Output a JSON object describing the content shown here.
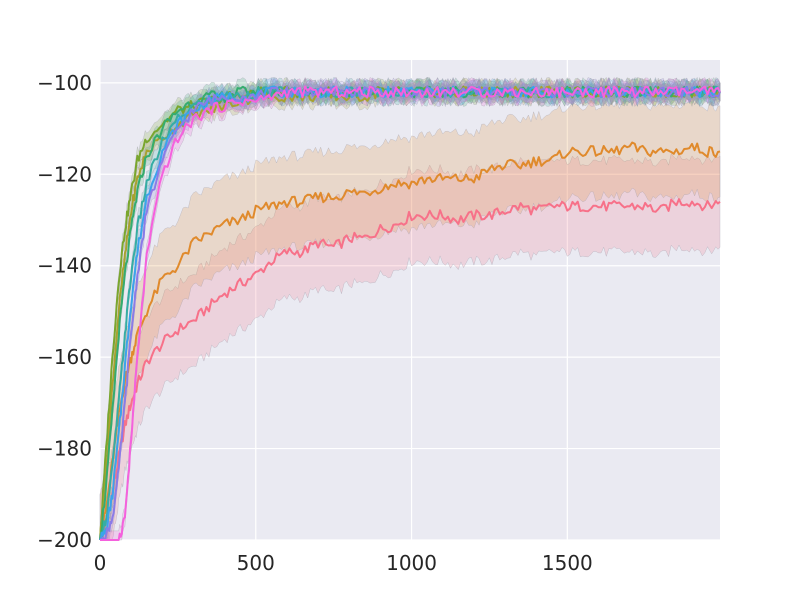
{
  "chart_data": {
    "type": "line",
    "title": "",
    "xlabel": "",
    "ylabel": "",
    "xlim": [
      0,
      1990
    ],
    "ylim": [
      -200,
      -95
    ],
    "x_ticks": [
      0,
      500,
      1000,
      1500
    ],
    "y_ticks": [
      -200,
      -180,
      -160,
      -140,
      -120,
      -100
    ],
    "x_tick_labels": [
      "0",
      "500",
      "1000",
      "1500"
    ],
    "y_tick_labels": [
      "−200",
      "−180",
      "−160",
      "−140",
      "−120",
      "−100"
    ],
    "grid": true,
    "legend": "none",
    "background": "#eaeaf2",
    "series": [
      {
        "color": "#f77189",
        "x": [
          0,
          20,
          40,
          60,
          80,
          100,
          120,
          150,
          200,
          250,
          300,
          350,
          400,
          450,
          500,
          550,
          600,
          650,
          700,
          750,
          800,
          850,
          900,
          950,
          1000,
          1050,
          1100,
          1150,
          1200,
          1250,
          1300,
          1350,
          1400,
          1450,
          1500,
          1550,
          1600,
          1650,
          1700,
          1750,
          1800,
          1850,
          1900,
          1950,
          1990
        ],
        "y": [
          -200,
          -196,
          -190,
          -182,
          -175,
          -170,
          -166,
          -161,
          -157,
          -154,
          -152,
          -149,
          -146,
          -144,
          -142,
          -139,
          -137,
          -137,
          -135,
          -136,
          -134,
          -134,
          -132,
          -131,
          -129,
          -129,
          -129,
          -130,
          -129,
          -129,
          -128,
          -127,
          -128,
          -127,
          -127,
          -127,
          -127,
          -127,
          -127,
          -127,
          -128,
          -126,
          -126,
          -127,
          -126
        ],
        "band": 10
      },
      {
        "color": "#e08a2c",
        "x": [
          0,
          20,
          40,
          60,
          80,
          100,
          120,
          150,
          200,
          250,
          300,
          350,
          400,
          450,
          500,
          550,
          600,
          650,
          700,
          750,
          800,
          850,
          900,
          950,
          1000,
          1050,
          1100,
          1150,
          1200,
          1250,
          1300,
          1350,
          1400,
          1450,
          1500,
          1550,
          1600,
          1650,
          1700,
          1750,
          1800,
          1850,
          1900,
          1950,
          1990
        ],
        "y": [
          -200,
          -193,
          -183,
          -173,
          -165,
          -160,
          -155,
          -150,
          -143,
          -140,
          -135,
          -133,
          -131,
          -130,
          -128,
          -127,
          -126,
          -126,
          -125,
          -125,
          -124,
          -124,
          -123,
          -122,
          -122,
          -121,
          -121,
          -121,
          -121,
          -119,
          -118,
          -118,
          -117,
          -117,
          -115,
          -115,
          -115,
          -115,
          -114,
          -115,
          -115,
          -115,
          -114,
          -115,
          -115
        ],
        "band": 10
      },
      {
        "color": "#7aa62e",
        "x": [
          0,
          20,
          40,
          60,
          80,
          100,
          120,
          150,
          200,
          250,
          300,
          350,
          400,
          450,
          500,
          550,
          600,
          650,
          700,
          750,
          800,
          850,
          900,
          950,
          1000,
          1050,
          1100,
          1150,
          1200,
          1250,
          1300,
          1350,
          1400,
          1450,
          1500,
          1550,
          1600,
          1650,
          1700,
          1750,
          1800,
          1850,
          1900,
          1950,
          1990
        ],
        "y": [
          -200,
          -180,
          -160,
          -143,
          -132,
          -124,
          -117,
          -112,
          -109,
          -106,
          -105,
          -104,
          -103,
          -103,
          -102,
          -102,
          -102,
          -102,
          -102,
          -102,
          -102,
          -102,
          -102,
          -102,
          -102,
          -102,
          -102,
          -102,
          -102,
          -102,
          -102,
          -102,
          -102,
          -102,
          -102,
          -102,
          -102,
          -102,
          -102,
          -102,
          -102,
          -102,
          -102,
          -102,
          -102
        ],
        "band": 2
      },
      {
        "color": "#a8a12f",
        "x": [
          0,
          20,
          40,
          60,
          80,
          100,
          120,
          150,
          200,
          250,
          300,
          350,
          400,
          450,
          500,
          550,
          600,
          650,
          700,
          750,
          800,
          850,
          900,
          950,
          1000,
          1050,
          1100,
          1150,
          1200,
          1250,
          1300,
          1350,
          1400,
          1450,
          1500,
          1550,
          1600,
          1650,
          1700,
          1750,
          1800,
          1850,
          1900,
          1950,
          1990
        ],
        "y": [
          -200,
          -185,
          -166,
          -150,
          -138,
          -128,
          -121,
          -115,
          -112,
          -109,
          -107,
          -106,
          -105,
          -104,
          -103,
          -103,
          -103,
          -103,
          -103,
          -103,
          -103,
          -103,
          -102,
          -102,
          -102,
          -102,
          -102,
          -102,
          -102,
          -102,
          -102,
          -102,
          -102,
          -102,
          -102,
          -102,
          -102,
          -102,
          -102,
          -102,
          -102,
          -102,
          -102,
          -102,
          -102
        ],
        "band": 2
      },
      {
        "color": "#35ac6f",
        "x": [
          0,
          20,
          40,
          60,
          80,
          100,
          120,
          150,
          200,
          250,
          300,
          350,
          400,
          450,
          500,
          550,
          600,
          650,
          700,
          750,
          800,
          850,
          900,
          950,
          1000,
          1050,
          1100,
          1150,
          1200,
          1250,
          1300,
          1350,
          1400,
          1450,
          1500,
          1550,
          1600,
          1650,
          1700,
          1750,
          1800,
          1850,
          1900,
          1950,
          1990
        ],
        "y": [
          -200,
          -188,
          -172,
          -155,
          -142,
          -132,
          -124,
          -116,
          -110,
          -106,
          -104,
          -103,
          -103,
          -102,
          -102,
          -102,
          -102,
          -102,
          -102,
          -102,
          -102,
          -102,
          -102,
          -102,
          -102,
          -102,
          -102,
          -102,
          -102,
          -102,
          -102,
          -102,
          -102,
          -102,
          -102,
          -102,
          -102,
          -102,
          -102,
          -102,
          -102,
          -102,
          -102,
          -102,
          -102
        ],
        "band": 2
      },
      {
        "color": "#36ada4",
        "x": [
          0,
          20,
          40,
          60,
          80,
          100,
          120,
          150,
          200,
          250,
          300,
          350,
          400,
          450,
          500,
          550,
          600,
          650,
          700,
          750,
          800,
          850,
          900,
          950,
          1000,
          1050,
          1100,
          1150,
          1200,
          1250,
          1300,
          1350,
          1400,
          1450,
          1500,
          1550,
          1600,
          1650,
          1700,
          1750,
          1800,
          1850,
          1900,
          1950,
          1990
        ],
        "y": [
          -200,
          -195,
          -184,
          -170,
          -155,
          -142,
          -132,
          -122,
          -113,
          -108,
          -105,
          -104,
          -103,
          -103,
          -102,
          -102,
          -102,
          -102,
          -102,
          -102,
          -102,
          -102,
          -102,
          -102,
          -102,
          -102,
          -102,
          -102,
          -102,
          -102,
          -102,
          -102,
          -102,
          -102,
          -102,
          -102,
          -102,
          -102,
          -102,
          -102,
          -102,
          -102,
          -102,
          -102,
          -102
        ],
        "band": 2
      },
      {
        "color": "#3ba3ec",
        "x": [
          0,
          20,
          40,
          60,
          80,
          100,
          120,
          150,
          200,
          250,
          300,
          350,
          400,
          450,
          500,
          550,
          600,
          650,
          700,
          750,
          800,
          850,
          900,
          950,
          1000,
          1050,
          1100,
          1150,
          1200,
          1250,
          1300,
          1350,
          1400,
          1450,
          1500,
          1550,
          1600,
          1650,
          1700,
          1750,
          1800,
          1850,
          1900,
          1950,
          1990
        ],
        "y": [
          -200,
          -198,
          -190,
          -177,
          -162,
          -148,
          -137,
          -125,
          -115,
          -109,
          -106,
          -104,
          -103,
          -103,
          -103,
          -102,
          -102,
          -102,
          -102,
          -102,
          -102,
          -102,
          -102,
          -102,
          -102,
          -102,
          -102,
          -102,
          -102,
          -102,
          -102,
          -102,
          -102,
          -102,
          -102,
          -102,
          -102,
          -102,
          -102,
          -102,
          -102,
          -102,
          -102,
          -102,
          -102
        ],
        "band": 2
      },
      {
        "color": "#8b7be7",
        "x": [
          0,
          20,
          40,
          60,
          80,
          100,
          120,
          150,
          200,
          250,
          300,
          350,
          400,
          450,
          500,
          550,
          600,
          650,
          700,
          750,
          800,
          850,
          900,
          950,
          1000,
          1050,
          1100,
          1150,
          1200,
          1250,
          1300,
          1350,
          1400,
          1450,
          1500,
          1550,
          1600,
          1650,
          1700,
          1750,
          1800,
          1850,
          1900,
          1950,
          1990
        ],
        "y": [
          -200,
          -199,
          -195,
          -185,
          -170,
          -155,
          -142,
          -128,
          -117,
          -110,
          -106,
          -104,
          -103,
          -103,
          -103,
          -102,
          -102,
          -102,
          -102,
          -102,
          -102,
          -102,
          -102,
          -102,
          -102,
          -102,
          -102,
          -102,
          -102,
          -102,
          -102,
          -102,
          -102,
          -102,
          -102,
          -102,
          -102,
          -102,
          -102,
          -102,
          -102,
          -102,
          -102,
          -102,
          -102
        ],
        "band": 2
      },
      {
        "color": "#f561dd",
        "x": [
          0,
          20,
          40,
          60,
          80,
          100,
          120,
          150,
          200,
          250,
          300,
          350,
          400,
          450,
          500,
          550,
          600,
          650,
          700,
          750,
          800,
          850,
          900,
          950,
          1000,
          1050,
          1100,
          1150,
          1200,
          1250,
          1300,
          1350,
          1400,
          1450,
          1500,
          1550,
          1600,
          1650,
          1700,
          1750,
          1800,
          1850,
          1900,
          1950,
          1990
        ],
        "y": [
          -200,
          -200,
          -200,
          -200,
          -195,
          -178,
          -160,
          -138,
          -120,
          -112,
          -108,
          -106,
          -105,
          -104,
          -104,
          -103,
          -102,
          -102,
          -102,
          -102,
          -102,
          -102,
          -102,
          -102,
          -102,
          -102,
          -102,
          -102,
          -102,
          -102,
          -102,
          -102,
          -102,
          -102,
          -102,
          -102,
          -102,
          -102,
          -102,
          -102,
          -102,
          -102,
          -102,
          -102,
          -102
        ],
        "band": 2
      }
    ]
  }
}
